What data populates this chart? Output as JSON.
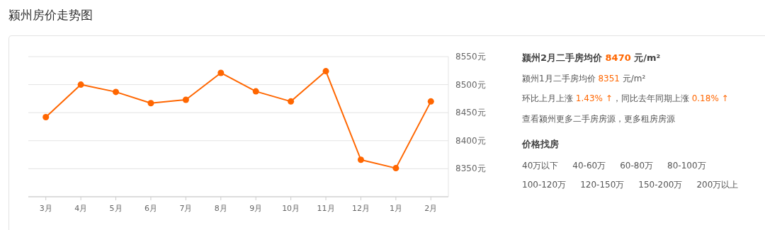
{
  "chart_data": [
    {
      "type": "line",
      "title": "颍州房价走势图",
      "categories": [
        "3月",
        "4月",
        "5月",
        "6月",
        "7月",
        "8月",
        "9月",
        "10月",
        "11月",
        "12月",
        "1月",
        "2月"
      ],
      "series": [
        {
          "color": "#ff6600",
          "values": [
            8442,
            8500,
            8487,
            8467,
            8473,
            8521,
            8488,
            8470,
            8524,
            8366,
            8351,
            8470
          ]
        }
      ],
      "ylim": [
        8300,
        8550
      ],
      "yticks": [
        {
          "value": 8300,
          "label": null
        },
        {
          "value": 8350,
          "label": "8350元"
        },
        {
          "value": 8400,
          "label": "8400元"
        },
        {
          "value": 8450,
          "label": "8450元"
        },
        {
          "value": 8500,
          "label": "8500元"
        },
        {
          "value": 8550,
          "label": "8550元"
        }
      ],
      "grid": true,
      "marker": "circle"
    },
    {
      "type": "other",
      "title": "颍州2月二手房均价 8470 元/m²",
      "annotations": [
        "颍州1月二手房均价 8351 元/m²",
        "环比上月上涨 1.43% ↑，同比去年同期上涨 0.18% ↑",
        "查看颍州更多二手房房源，更多租房房源"
      ],
      "subtitle": "价格找房",
      "categories": [
        "40万以下",
        "40-60万",
        "60-80万",
        "80-100万",
        "100-120万",
        "120-150万",
        "150-200万",
        "200万以上"
      ]
    }
  ]
}
